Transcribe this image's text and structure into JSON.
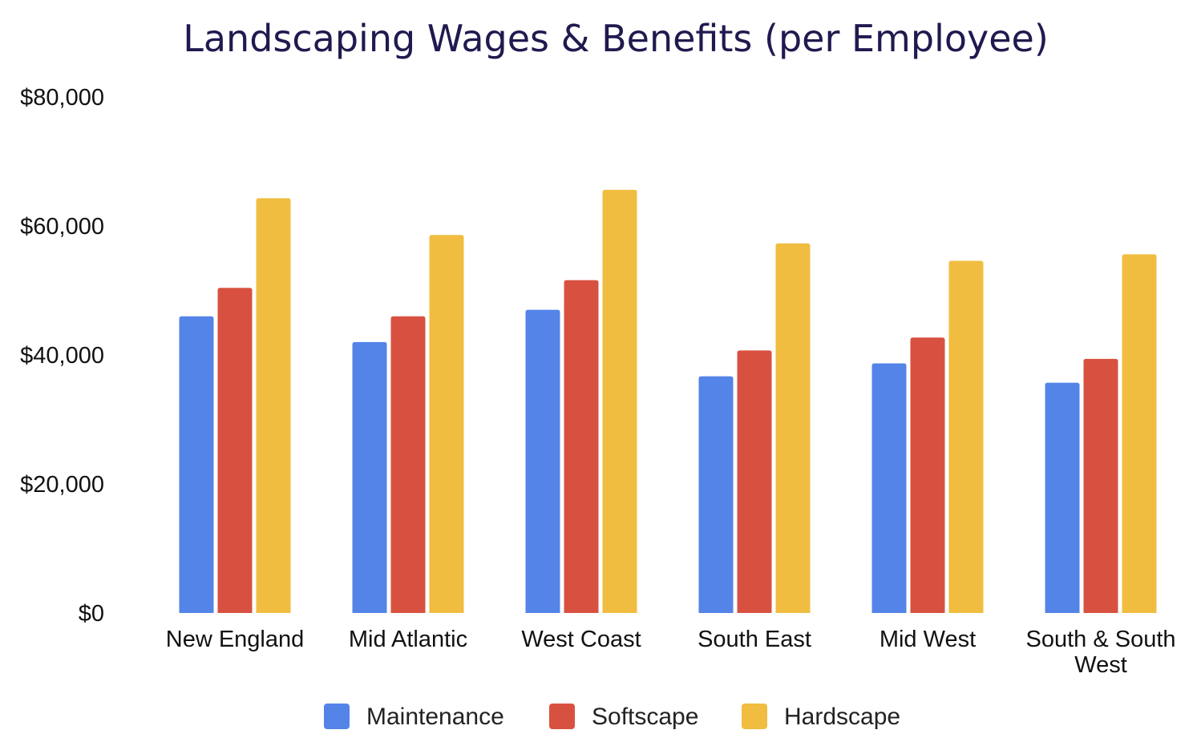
{
  "chart_data": {
    "type": "bar",
    "title": "Landscaping Wages & Benefits (per Employee)",
    "xlabel": "",
    "ylabel": "",
    "ylim": [
      0,
      80000
    ],
    "y_ticks": [
      0,
      20000,
      40000,
      60000,
      80000
    ],
    "y_tick_labels": [
      "$0",
      "$20,000",
      "$40,000",
      "$60,000",
      "$80,000"
    ],
    "grid": false,
    "legend_position": "bottom",
    "categories": [
      [
        "New England"
      ],
      [
        "Mid Atlantic"
      ],
      [
        "West Coast"
      ],
      [
        "South East"
      ],
      [
        "Mid West"
      ],
      [
        "South & South",
        "West"
      ]
    ],
    "series": [
      {
        "name": "Maintenance",
        "color": "#5484e8",
        "values": [
          46000,
          42000,
          47000,
          36700,
          38700,
          35700
        ]
      },
      {
        "name": "Softscape",
        "color": "#d85140",
        "values": [
          50400,
          46000,
          51600,
          40700,
          42700,
          39400
        ]
      },
      {
        "name": "Hardscape",
        "color": "#f0bd40",
        "values": [
          64300,
          58600,
          65600,
          57300,
          54600,
          55600
        ]
      }
    ]
  }
}
